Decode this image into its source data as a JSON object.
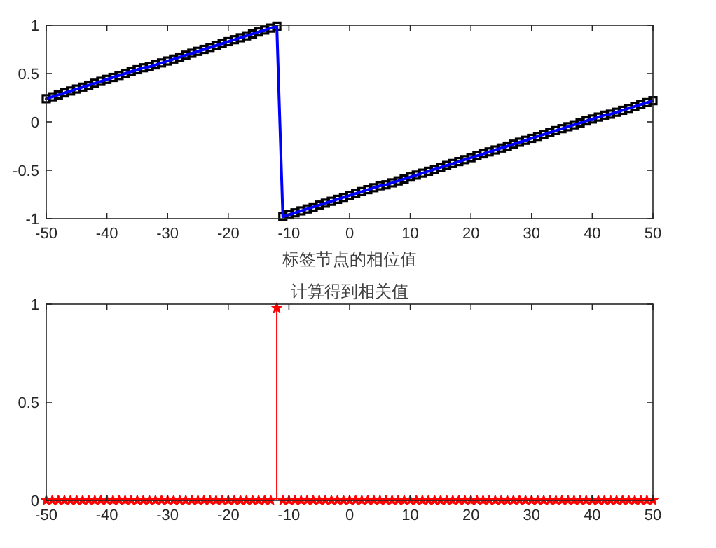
{
  "chart_data": [
    {
      "type": "line",
      "xlabel": "标签节点的相位值",
      "x": [
        -50,
        -49,
        -48,
        -47,
        -46,
        -45,
        -44,
        -43,
        -42,
        -41,
        -40,
        -39,
        -38,
        -37,
        -36,
        -35,
        -34,
        -33,
        -32,
        -31,
        -30,
        -29,
        -28,
        -27,
        -26,
        -25,
        -24,
        -23,
        -22,
        -21,
        -20,
        -19,
        -18,
        -17,
        -16,
        -15,
        -14,
        -13,
        -12,
        -11,
        -10,
        -9,
        -8,
        -7,
        -6,
        -5,
        -4,
        -3,
        -2,
        -1,
        0,
        1,
        2,
        3,
        4,
        5,
        6,
        7,
        8,
        9,
        10,
        11,
        12,
        13,
        14,
        15,
        16,
        17,
        18,
        19,
        20,
        21,
        22,
        23,
        24,
        25,
        26,
        27,
        28,
        29,
        30,
        31,
        32,
        33,
        34,
        35,
        36,
        37,
        38,
        39,
        40,
        41,
        42,
        43,
        44,
        45,
        46,
        47,
        48,
        49,
        50
      ],
      "series": [
        {
          "color": "#0000ff",
          "values": [
            0.24,
            0.26,
            0.28,
            0.3,
            0.32,
            0.34,
            0.36,
            0.38,
            0.4,
            0.42,
            0.44,
            0.46,
            0.48,
            0.5,
            0.52,
            0.54,
            0.56,
            0.57,
            0.59,
            0.61,
            0.63,
            0.65,
            0.67,
            0.69,
            0.71,
            0.73,
            0.75,
            0.77,
            0.79,
            0.81,
            0.83,
            0.85,
            0.87,
            0.89,
            0.91,
            0.93,
            0.95,
            0.97,
            0.99,
            -0.98,
            -0.96,
            -0.94,
            -0.92,
            -0.9,
            -0.88,
            -0.86,
            -0.84,
            -0.82,
            -0.8,
            -0.78,
            -0.76,
            -0.74,
            -0.72,
            -0.7,
            -0.68,
            -0.66,
            -0.65,
            -0.63,
            -0.61,
            -0.59,
            -0.57,
            -0.55,
            -0.53,
            -0.51,
            -0.49,
            -0.47,
            -0.45,
            -0.43,
            -0.41,
            -0.39,
            -0.37,
            -0.35,
            -0.33,
            -0.31,
            -0.29,
            -0.27,
            -0.25,
            -0.23,
            -0.21,
            -0.19,
            -0.17,
            -0.15,
            -0.13,
            -0.11,
            -0.09,
            -0.07,
            -0.05,
            -0.03,
            -0.01,
            0.01,
            0.03,
            0.05,
            0.07,
            0.08,
            0.1,
            0.12,
            0.14,
            0.16,
            0.18,
            0.2,
            0.22
          ]
        }
      ],
      "xlim": [
        -50,
        50
      ],
      "ylim": [
        -1,
        1
      ],
      "xticks": [
        -50,
        -40,
        -30,
        -20,
        -10,
        0,
        10,
        20,
        30,
        40,
        50
      ],
      "yticks": [
        -1,
        -0.5,
        0,
        0.5,
        1
      ],
      "marker": "square",
      "line_style": "solid"
    },
    {
      "type": "lollipop",
      "title": "计算得到相关值",
      "x": [
        -50,
        -49,
        -48,
        -47,
        -46,
        -45,
        -44,
        -43,
        -42,
        -41,
        -40,
        -39,
        -38,
        -37,
        -36,
        -35,
        -34,
        -33,
        -32,
        -31,
        -30,
        -29,
        -28,
        -27,
        -26,
        -25,
        -24,
        -23,
        -22,
        -21,
        -20,
        -19,
        -18,
        -17,
        -16,
        -15,
        -14,
        -13,
        -12,
        -11,
        -10,
        -9,
        -8,
        -7,
        -6,
        -5,
        -4,
        -3,
        -2,
        -1,
        0,
        1,
        2,
        3,
        4,
        5,
        6,
        7,
        8,
        9,
        10,
        11,
        12,
        13,
        14,
        15,
        16,
        17,
        18,
        19,
        20,
        21,
        22,
        23,
        24,
        25,
        26,
        27,
        28,
        29,
        30,
        31,
        32,
        33,
        34,
        35,
        36,
        37,
        38,
        39,
        40,
        41,
        42,
        43,
        44,
        45,
        46,
        47,
        48,
        49,
        50
      ],
      "values": [
        0,
        0,
        0,
        0,
        0,
        0,
        0,
        0,
        0,
        0,
        0,
        0,
        0,
        0,
        0,
        0,
        0,
        0,
        0,
        0,
        0,
        0,
        0,
        0,
        0,
        0,
        0,
        0,
        0,
        0,
        0,
        0,
        0,
        0,
        0,
        0,
        0,
        0,
        0.98,
        0,
        0,
        0,
        0,
        0,
        0,
        0,
        0,
        0,
        0,
        0,
        0,
        0,
        0,
        0,
        0,
        0,
        0,
        0,
        0,
        0,
        0,
        0,
        0,
        0,
        0,
        0,
        0,
        0,
        0,
        0,
        0,
        0,
        0,
        0,
        0,
        0,
        0,
        0,
        0,
        0,
        0,
        0,
        0,
        0,
        0,
        0,
        0,
        0,
        0,
        0,
        0,
        0,
        0,
        0,
        0,
        0,
        0,
        0,
        0,
        0,
        0
      ],
      "color": "#ff0000",
      "xlim": [
        -50,
        50
      ],
      "ylim": [
        0,
        1
      ],
      "xticks": [
        -50,
        -40,
        -30,
        -20,
        -10,
        0,
        10,
        20,
        30,
        40,
        50
      ],
      "yticks": [
        0,
        0.5,
        1
      ],
      "marker": "star"
    }
  ]
}
